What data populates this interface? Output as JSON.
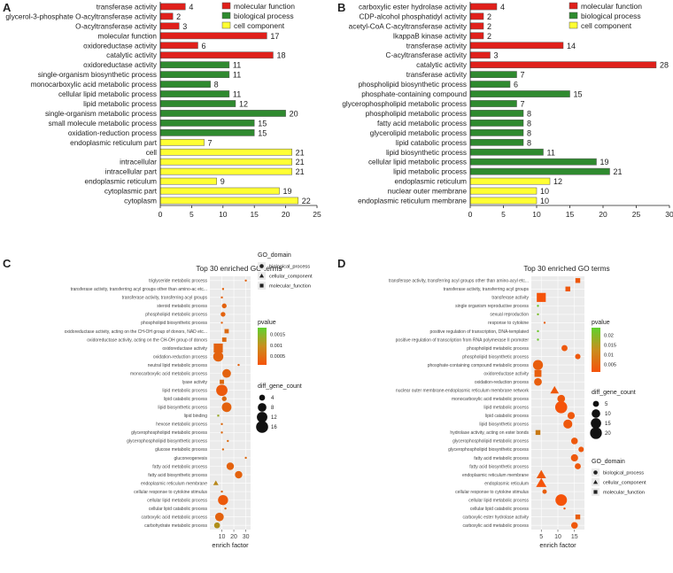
{
  "colors": {
    "molecular_function": "#e0201b",
    "biological_process": "#2f8a2f",
    "cell_component": "#ffff33",
    "bar_border": "#555555",
    "panel_bg": "#ebebeb",
    "grid": "#ffffff",
    "pvalue_low": "#f5530a",
    "pvalue_mid": "#c98e1e",
    "pvalue_high": "#5fd12e"
  },
  "chart_data": [
    {
      "panel": "A",
      "type": "bar",
      "orientation": "horizontal",
      "xlim": [
        0,
        25
      ],
      "xticks": [
        0,
        5,
        10,
        15,
        20,
        25
      ],
      "legend": {
        "position": "top-right",
        "entries": [
          "molecular function",
          "biological process",
          "cell component"
        ]
      },
      "categories": [
        {
          "label": "transferase activity",
          "value": 4,
          "group": "molecular_function"
        },
        {
          "label": "glycerol-3-phosphate O-acyltransferase activity",
          "value": 2,
          "group": "molecular_function"
        },
        {
          "label": "O-acyltransferase activity",
          "value": 3,
          "group": "molecular_function"
        },
        {
          "label": "molecular function",
          "value": 17,
          "group": "molecular_function"
        },
        {
          "label": "oxidoreductase activity",
          "value": 6,
          "group": "molecular_function"
        },
        {
          "label": "catalytic activity",
          "value": 18,
          "group": "molecular_function"
        },
        {
          "label": "oxidoreductase activity",
          "value": 11,
          "group": "biological_process"
        },
        {
          "label": "single-organism biosynthetic process",
          "value": 11,
          "group": "biological_process"
        },
        {
          "label": "monocarboxylic acid metabolic process",
          "value": 8,
          "group": "biological_process"
        },
        {
          "label": "cellular lipid metabolic process",
          "value": 11,
          "group": "biological_process"
        },
        {
          "label": "lipid metabolic process",
          "value": 12,
          "group": "biological_process"
        },
        {
          "label": "single-organism metabolic process",
          "value": 20,
          "group": "biological_process"
        },
        {
          "label": "small molecule metabolic process",
          "value": 15,
          "group": "biological_process"
        },
        {
          "label": "oxidation-reduction process",
          "value": 15,
          "group": "biological_process"
        },
        {
          "label": "endoplasmic reticulum part",
          "value": 7,
          "group": "cell_component"
        },
        {
          "label": "cell",
          "value": 21,
          "group": "cell_component"
        },
        {
          "label": "intracellular",
          "value": 21,
          "group": "cell_component"
        },
        {
          "label": "intracellular part",
          "value": 21,
          "group": "cell_component"
        },
        {
          "label": "endoplasmic reticulum",
          "value": 9,
          "group": "cell_component"
        },
        {
          "label": "cytoplasmic part",
          "value": 19,
          "group": "cell_component"
        },
        {
          "label": "cytoplasm",
          "value": 22,
          "group": "cell_component"
        }
      ]
    },
    {
      "panel": "B",
      "type": "bar",
      "orientation": "horizontal",
      "xlim": [
        0,
        30
      ],
      "xticks": [
        0,
        5,
        10,
        15,
        20,
        25,
        30
      ],
      "legend": {
        "position": "top-right",
        "entries": [
          "molecular function",
          "biological process",
          "cell component"
        ]
      },
      "categories": [
        {
          "label": "carboxylic ester hydrolase activity",
          "value": 4,
          "group": "molecular_function"
        },
        {
          "label": "CDP-alcohol phosphatidyl activity",
          "value": 2,
          "group": "molecular_function"
        },
        {
          "label": "acetyl-CoA C-acyltransferase activity",
          "value": 2,
          "group": "molecular_function"
        },
        {
          "label": "IkappaB kinase activity",
          "value": 2,
          "group": "molecular_function"
        },
        {
          "label": "transferase activity",
          "value": 14,
          "group": "molecular_function"
        },
        {
          "label": "C-acyltransferase activity",
          "value": 3,
          "group": "molecular_function"
        },
        {
          "label": "catalytic activity",
          "value": 28,
          "group": "molecular_function"
        },
        {
          "label": "transferase activity",
          "value": 7,
          "group": "biological_process"
        },
        {
          "label": "phospholipid biosynthetic process",
          "value": 6,
          "group": "biological_process"
        },
        {
          "label": "phosphate-containing compound",
          "value": 15,
          "group": "biological_process"
        },
        {
          "label": "glycerophospholipid metabolic process",
          "value": 7,
          "group": "biological_process"
        },
        {
          "label": "phospholipid metabolic process",
          "value": 8,
          "group": "biological_process"
        },
        {
          "label": "fatty acid metabolic process",
          "value": 8,
          "group": "biological_process"
        },
        {
          "label": "glycerolipid metabolic process",
          "value": 8,
          "group": "biological_process"
        },
        {
          "label": "lipid catabolic process",
          "value": 8,
          "group": "biological_process"
        },
        {
          "label": "lipid biosynthetic process",
          "value": 11,
          "group": "biological_process"
        },
        {
          "label": "cellular lipid metabolic process",
          "value": 19,
          "group": "biological_process"
        },
        {
          "label": "lipid metabolic process",
          "value": 21,
          "group": "biological_process"
        },
        {
          "label": "endoplasmic reticulum",
          "value": 12,
          "group": "cell_component"
        },
        {
          "label": "nuclear outer membrane",
          "value": 10,
          "group": "cell_component"
        },
        {
          "label": "endoplasmic reticulum membrane",
          "value": 10,
          "group": "cell_component"
        }
      ]
    },
    {
      "panel": "C",
      "type": "scatter",
      "title": "Top 30 enriched GO terms",
      "xlabel": "enrich factor",
      "xlim": [
        0,
        34
      ],
      "xticks": [
        10,
        20,
        30
      ],
      "legend_titles": {
        "domain": "GO_domain",
        "pvalue": "pvalue",
        "size": "diff_gene_count"
      },
      "domain_entries": [
        "biological_process",
        "cellular_component",
        "molecular_function"
      ],
      "pvalue_range": [
        0.0001,
        0.0018
      ],
      "pvalue_ticks": [
        0.0015,
        0.001,
        0.0005
      ],
      "size_ticks": [
        4,
        8,
        12,
        16
      ],
      "points": [
        {
          "label": "triglyceride metabolic process",
          "x": 30,
          "count": 2,
          "pvalue": 0.0003,
          "domain": "biological_process"
        },
        {
          "label": "transferase activity, transferring acyl groups other than amino-acyl g etc...",
          "x": 11,
          "count": 2,
          "pvalue": 0.0003,
          "domain": "molecular_function"
        },
        {
          "label": "transferase activity, transferring acyl groups",
          "x": 10,
          "count": 2,
          "pvalue": 0.0003,
          "domain": "molecular_function"
        },
        {
          "label": "steroid metabolic process",
          "x": 12,
          "count": 3,
          "pvalue": 0.0003,
          "domain": "biological_process"
        },
        {
          "label": "phospholipid metabolic process",
          "x": 11,
          "count": 3,
          "pvalue": 0.0003,
          "domain": "biological_process"
        },
        {
          "label": "phospholipid biosynthetic process",
          "x": 10,
          "count": 2,
          "pvalue": 0.0003,
          "domain": "biological_process"
        },
        {
          "label": "oxidoreductase activity, acting on the CH-OH group of donors, NAD or NADP as acceptor etc...",
          "x": 14,
          "count": 3,
          "pvalue": 0.0004,
          "domain": "molecular_function"
        },
        {
          "label": "oxidoreductase activity, acting on the CH-OH group of donors",
          "x": 12,
          "count": 3,
          "pvalue": 0.0004,
          "domain": "molecular_function"
        },
        {
          "label": "oxidoreductase activity",
          "x": 7,
          "count": 11,
          "pvalue": 0.0003,
          "domain": "molecular_function"
        },
        {
          "label": "oxidation-reduction process",
          "x": 7,
          "count": 11,
          "pvalue": 0.0003,
          "domain": "biological_process"
        },
        {
          "label": "neutral lipid metabolic process",
          "x": 24,
          "count": 2,
          "pvalue": 0.0003,
          "domain": "biological_process"
        },
        {
          "label": "monocarboxylic acid metabolic process",
          "x": 14,
          "count": 8,
          "pvalue": 0.0003,
          "domain": "biological_process"
        },
        {
          "label": "lyase activity",
          "x": 10,
          "count": 3,
          "pvalue": 0.0004,
          "domain": "molecular_function"
        },
        {
          "label": "lipid metabolic process",
          "x": 10,
          "count": 14,
          "pvalue": 0.0002,
          "domain": "biological_process"
        },
        {
          "label": "lipid catabolic process",
          "x": 12,
          "count": 3,
          "pvalue": 0.0004,
          "domain": "biological_process"
        },
        {
          "label": "lipid biosynthetic process",
          "x": 14,
          "count": 10,
          "pvalue": 0.0003,
          "domain": "biological_process"
        },
        {
          "label": "lipid binding",
          "x": 7,
          "count": 2,
          "pvalue": 0.0012,
          "domain": "molecular_function"
        },
        {
          "label": "hexose metabolic process",
          "x": 10,
          "count": 2,
          "pvalue": 0.0004,
          "domain": "biological_process"
        },
        {
          "label": "glycerophospholipid metabolic process",
          "x": 10,
          "count": 2,
          "pvalue": 0.0004,
          "domain": "biological_process"
        },
        {
          "label": "glycerophospholipid biosynthetic process",
          "x": 15,
          "count": 2,
          "pvalue": 0.0004,
          "domain": "biological_process"
        },
        {
          "label": "glucose metabolic process",
          "x": 11,
          "count": 2,
          "pvalue": 0.0004,
          "domain": "biological_process"
        },
        {
          "label": "gluconeogenesis",
          "x": 30,
          "count": 2,
          "pvalue": 0.0004,
          "domain": "biological_process"
        },
        {
          "label": "fatty acid metabolic process",
          "x": 17,
          "count": 6,
          "pvalue": 0.0003,
          "domain": "biological_process"
        },
        {
          "label": "fatty acid biosynthetic process",
          "x": 24,
          "count": 6,
          "pvalue": 0.0003,
          "domain": "biological_process"
        },
        {
          "label": "endoplasmic reticulum membrane",
          "x": 5,
          "count": 3,
          "pvalue": 0.0008,
          "domain": "cellular_component"
        },
        {
          "label": "cellular response to cytokine stimulus",
          "x": 10,
          "count": 2,
          "pvalue": 0.0004,
          "domain": "biological_process"
        },
        {
          "label": "cellular lipid metabolic process",
          "x": 11,
          "count": 11,
          "pvalue": 0.0002,
          "domain": "biological_process"
        },
        {
          "label": "cellular lipid catabolic process",
          "x": 13,
          "count": 2,
          "pvalue": 0.0004,
          "domain": "biological_process"
        },
        {
          "label": "carboxylic acid metabolic process",
          "x": 8,
          "count": 8,
          "pvalue": 0.0003,
          "domain": "biological_process"
        },
        {
          "label": "carbohydrate metabolic process",
          "x": 6,
          "count": 4,
          "pvalue": 0.0009,
          "domain": "biological_process"
        }
      ]
    },
    {
      "panel": "D",
      "type": "scatter",
      "title": "Top 30 enriched GO terms",
      "xlabel": "enrich factor",
      "xlim": [
        2,
        18
      ],
      "xticks": [
        5,
        10,
        15
      ],
      "legend_titles": {
        "domain": "GO_domain",
        "pvalue": "pvalue",
        "size": "diff_gene_count"
      },
      "domain_entries": [
        "biological_process",
        "cellular_component",
        "molecular_function"
      ],
      "pvalue_range": [
        0.001,
        0.024
      ],
      "pvalue_ticks": [
        0.02,
        0.015,
        0.01,
        0.005
      ],
      "size_ticks": [
        5,
        10,
        15,
        20
      ],
      "points": [
        {
          "label": "transferase activity, transferring acyl groups other than amino-acyl g etc...",
          "x": 16,
          "count": 4,
          "pvalue": 0.002,
          "domain": "molecular_function"
        },
        {
          "label": "transferase activity, transferring acyl groups",
          "x": 13,
          "count": 4,
          "pvalue": 0.002,
          "domain": "molecular_function"
        },
        {
          "label": "transferase activity",
          "x": 5,
          "count": 14,
          "pvalue": 0.001,
          "domain": "molecular_function"
        },
        {
          "label": "single organism reproductive process",
          "x": 4,
          "count": 2,
          "pvalue": 0.022,
          "domain": "biological_process"
        },
        {
          "label": "sexual reproduction",
          "x": 4,
          "count": 2,
          "pvalue": 0.02,
          "domain": "biological_process"
        },
        {
          "label": "response to cytokine",
          "x": 6,
          "count": 2,
          "pvalue": 0.003,
          "domain": "biological_process"
        },
        {
          "label": "positive regulation of transcription, DNA-templated",
          "x": 4,
          "count": 2,
          "pvalue": 0.022,
          "domain": "biological_process"
        },
        {
          "label": "positive regulation of transcription from RNA polymerase II promoter",
          "x": 4,
          "count": 2,
          "pvalue": 0.022,
          "domain": "biological_process"
        },
        {
          "label": "phospholipid metabolic process",
          "x": 12,
          "count": 5,
          "pvalue": 0.002,
          "domain": "biological_process"
        },
        {
          "label": "phospholipid biosynthetic process",
          "x": 16,
          "count": 4,
          "pvalue": 0.002,
          "domain": "biological_process"
        },
        {
          "label": "phosphate-containing compound metabolic process",
          "x": 4,
          "count": 14,
          "pvalue": 0.003,
          "domain": "biological_process"
        },
        {
          "label": "oxidoreductase activity",
          "x": 4,
          "count": 8,
          "pvalue": 0.003,
          "domain": "molecular_function"
        },
        {
          "label": "oxidation-reduction process",
          "x": 4,
          "count": 8,
          "pvalue": 0.003,
          "domain": "biological_process"
        },
        {
          "label": "nuclear outer membrane-endoplasmic reticulum membrane network",
          "x": 9,
          "count": 8,
          "pvalue": 0.002,
          "domain": "cellular_component"
        },
        {
          "label": "monocarboxylic acid metabolic process",
          "x": 11,
          "count": 8,
          "pvalue": 0.002,
          "domain": "biological_process"
        },
        {
          "label": "lipid metabolic process",
          "x": 11,
          "count": 21,
          "pvalue": 0.001,
          "domain": "biological_process"
        },
        {
          "label": "lipid catabolic process",
          "x": 14,
          "count": 7,
          "pvalue": 0.002,
          "domain": "biological_process"
        },
        {
          "label": "lipid biosynthetic process",
          "x": 13,
          "count": 11,
          "pvalue": 0.002,
          "domain": "biological_process"
        },
        {
          "label": "hydrolase activity, acting on ester bonds",
          "x": 4,
          "count": 4,
          "pvalue": 0.008,
          "domain": "molecular_function"
        },
        {
          "label": "glycerophospholipid metabolic process",
          "x": 15,
          "count": 6,
          "pvalue": 0.002,
          "domain": "biological_process"
        },
        {
          "label": "glycerophospholipid biosynthetic process",
          "x": 17,
          "count": 4,
          "pvalue": 0.002,
          "domain": "biological_process"
        },
        {
          "label": "fatty acid metabolic process",
          "x": 15,
          "count": 7,
          "pvalue": 0.002,
          "domain": "biological_process"
        },
        {
          "label": "fatty acid biosynthetic process",
          "x": 16,
          "count": 5,
          "pvalue": 0.002,
          "domain": "biological_process"
        },
        {
          "label": "endoplasmic reticulum membrane",
          "x": 5,
          "count": 10,
          "pvalue": 0.002,
          "domain": "cellular_component"
        },
        {
          "label": "endoplasmic reticulum",
          "x": 5,
          "count": 12,
          "pvalue": 0.001,
          "domain": "cellular_component"
        },
        {
          "label": "cellular response to cytokine stimulus",
          "x": 6,
          "count": 3,
          "pvalue": 0.003,
          "domain": "biological_process"
        },
        {
          "label": "cellular lipid metabolic process",
          "x": 11,
          "count": 19,
          "pvalue": 0.001,
          "domain": "biological_process"
        },
        {
          "label": "cellular lipid catabolic process",
          "x": 12,
          "count": 2,
          "pvalue": 0.002,
          "domain": "biological_process"
        },
        {
          "label": "carboxylic ester hydrolase activity",
          "x": 16,
          "count": 4,
          "pvalue": 0.003,
          "domain": "molecular_function"
        },
        {
          "label": "carboxylic acid metabolic process",
          "x": 15,
          "count": 6,
          "pvalue": 0.002,
          "domain": "biological_process"
        }
      ]
    }
  ],
  "panel_labels": [
    "A",
    "B",
    "C",
    "D"
  ],
  "domain_legend_labels": {
    "biological_process": "biological_process",
    "cellular_component": "cellular_component",
    "molecular_function": "molecular_function"
  }
}
